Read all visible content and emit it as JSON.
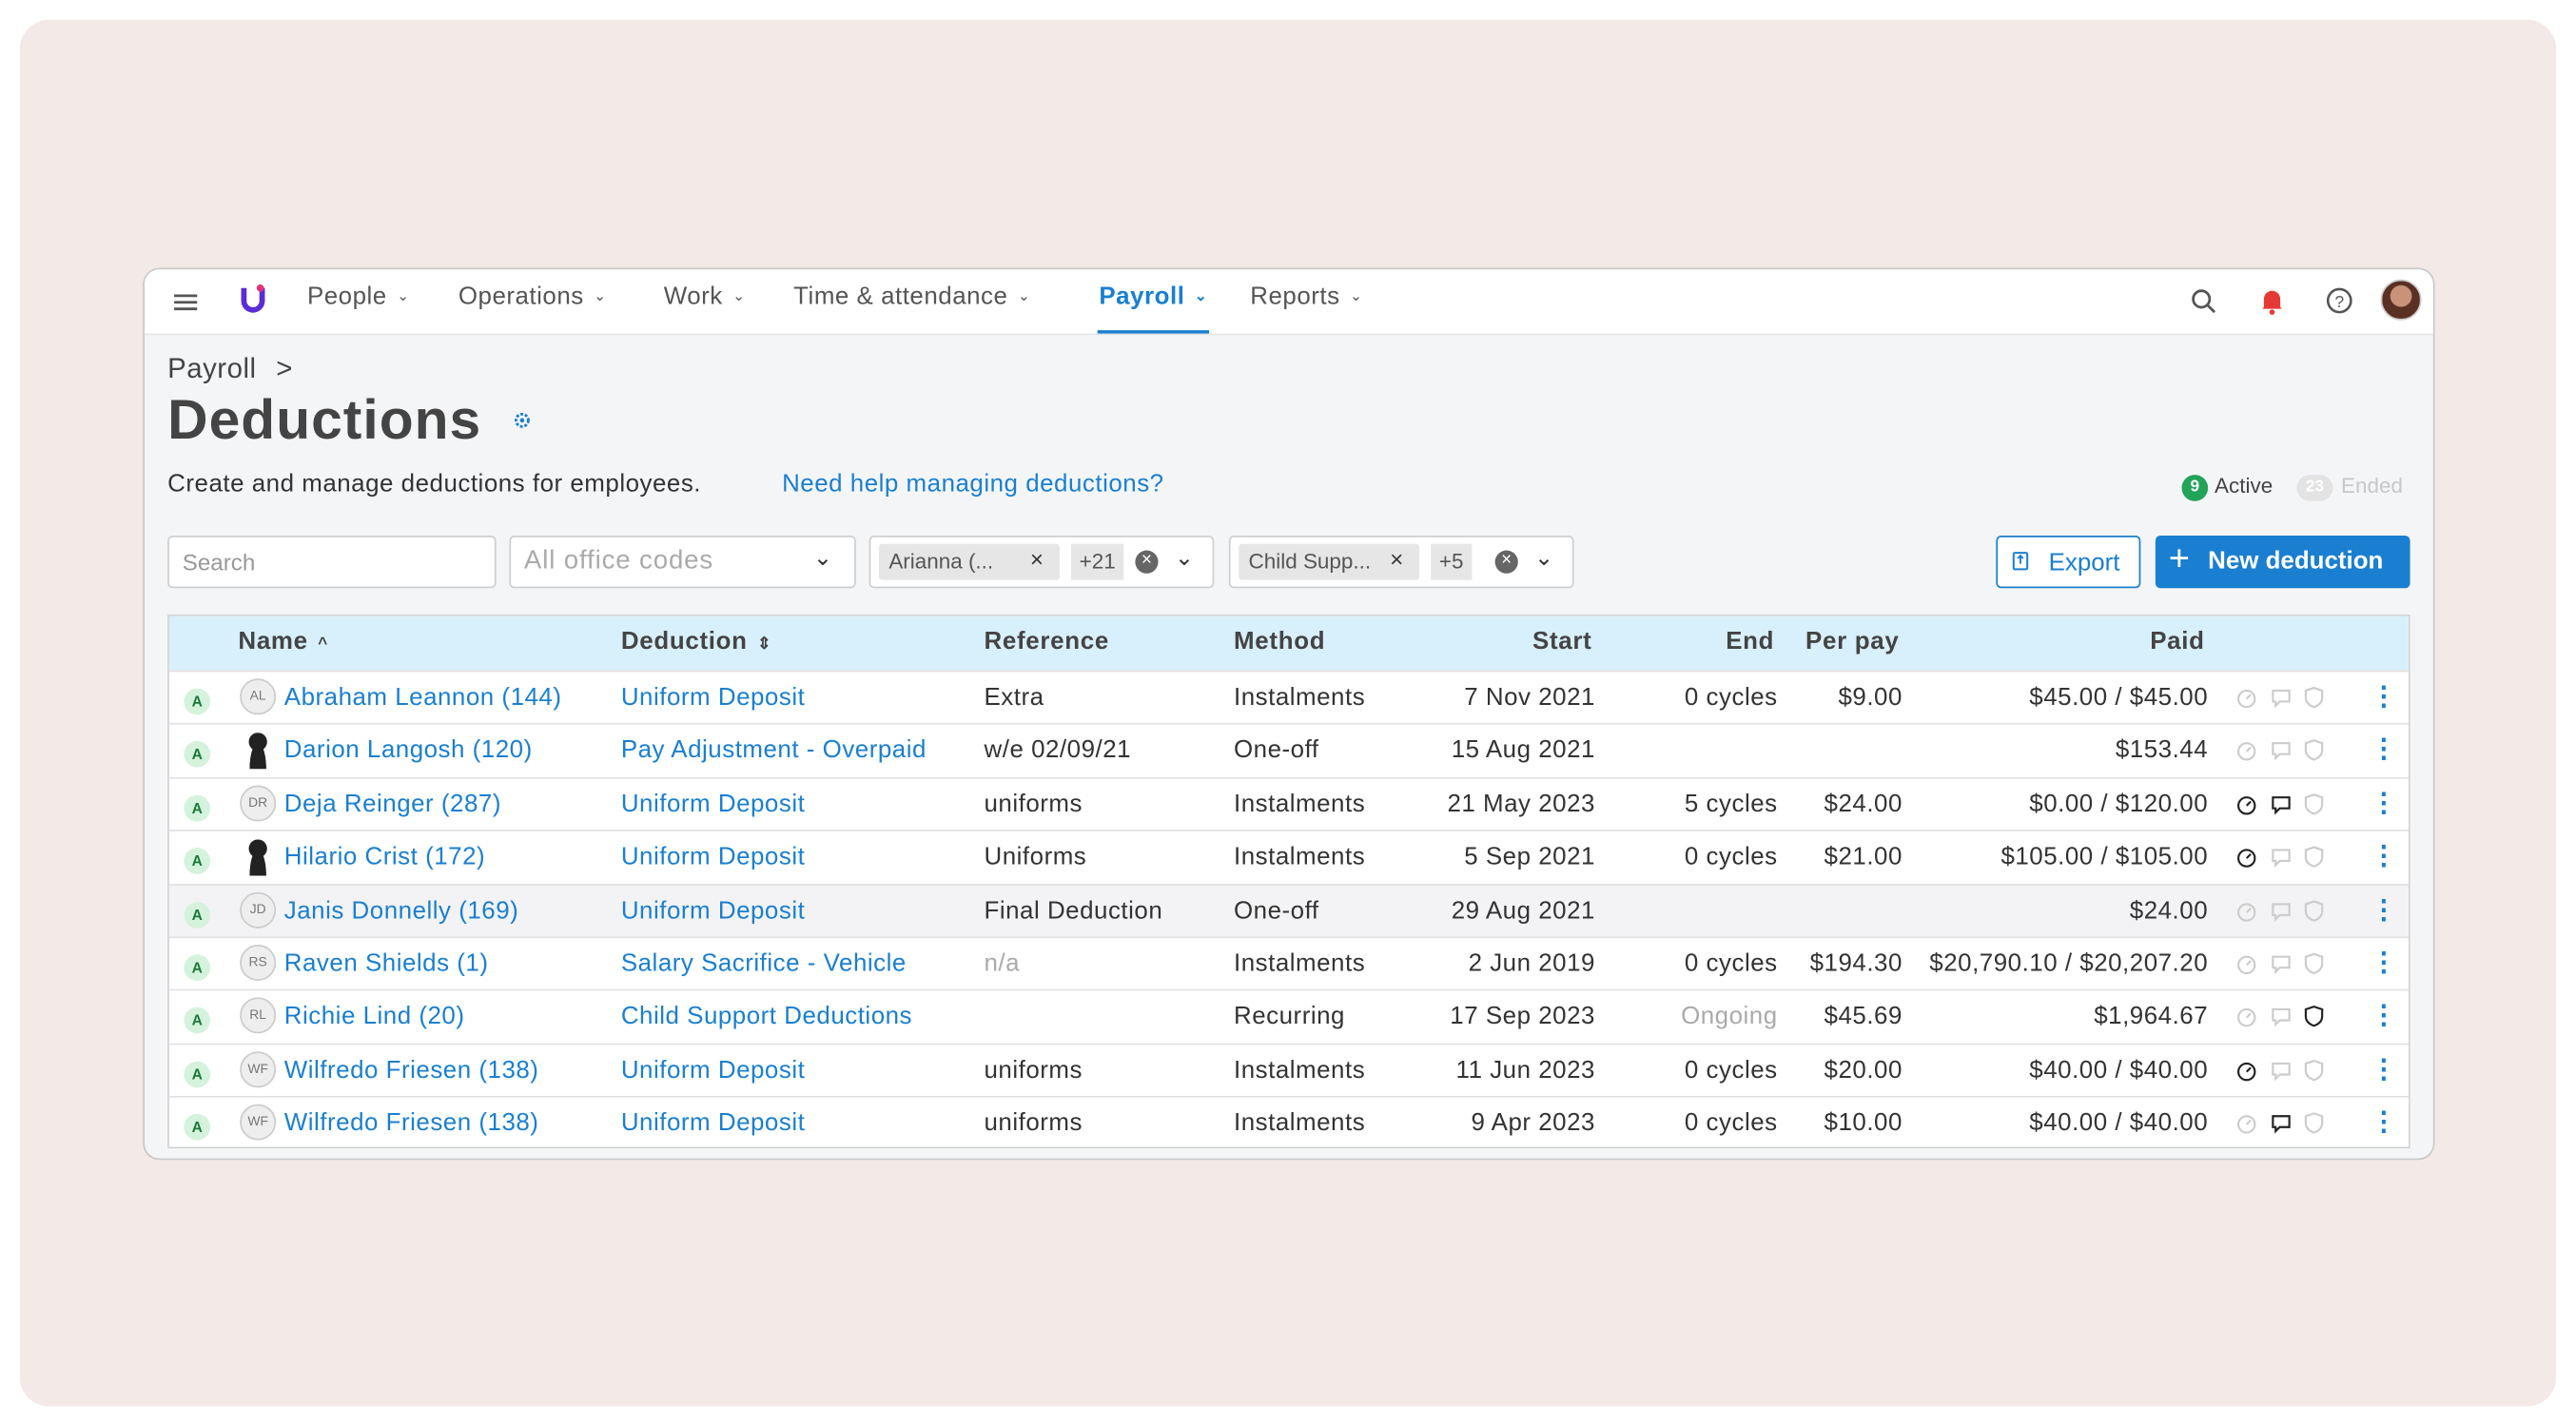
{
  "nav": {
    "items": [
      "People",
      "Operations",
      "Work",
      "Time & attendance",
      "Payroll",
      "Reports"
    ],
    "active": "Payroll"
  },
  "breadcrumb": "Payroll",
  "title": "Deductions",
  "description": "Create and manage deductions for employees.",
  "help_link": "Need help managing deductions?",
  "status": {
    "active_count": "9",
    "active_label": "Active",
    "ended_count": "23",
    "ended_label": "Ended"
  },
  "filters": {
    "search": "Search",
    "office_codes": "All office codes",
    "people_chip": "Arianna (...",
    "people_more": "+21",
    "deduction_chip": "Child Supp...",
    "deduction_more": "+5"
  },
  "buttons": {
    "export": "Export",
    "new": "New deduction"
  },
  "table": {
    "headers": [
      "Name",
      "Deduction",
      "Reference",
      "Method",
      "Start",
      "End",
      "Per pay",
      "Paid"
    ],
    "rows": [
      {
        "status": "A",
        "initials": "AL",
        "name": "Abraham Leannon (144)",
        "deduction": "Uniform Deposit",
        "reference": "Extra",
        "method": "Instalments",
        "start": "7 Nov 2021",
        "end": "0 cycles",
        "per_pay": "$9.00",
        "paid": "$45.00 / $45.00"
      },
      {
        "status": "A",
        "name": "Darion Langosh (120)",
        "deduction": "Pay Adjustment - Overpaid",
        "reference": "w/e 02/09/21",
        "method": "One-off",
        "start": "15 Aug 2021",
        "paid": "$153.44"
      },
      {
        "status": "A",
        "initials": "DR",
        "name": "Deja Reinger (287)",
        "deduction": "Uniform Deposit",
        "reference": "uniforms",
        "method": "Instalments",
        "start": "21 May 2023",
        "end": "5 cycles",
        "per_pay": "$24.00",
        "paid": "$0.00 / $120.00"
      },
      {
        "status": "A",
        "name": "Hilario Crist (172)",
        "deduction": "Uniform Deposit",
        "reference": "Uniforms",
        "method": "Instalments",
        "start": "5 Sep 2021",
        "end": "0 cycles",
        "per_pay": "$21.00",
        "paid": "$105.00 / $105.00"
      },
      {
        "status": "A",
        "initials": "JD",
        "name": "Janis Donnelly (169)",
        "deduction": "Uniform Deposit",
        "reference": "Final Deduction",
        "method": "One-off",
        "start": "29 Aug 2021",
        "paid": "$24.00"
      },
      {
        "status": "A",
        "initials": "RS",
        "name": "Raven Shields (1)",
        "deduction": "Salary Sacrifice - Vehicle",
        "reference": "n/a",
        "method": "Instalments",
        "start": "2 Jun 2019",
        "end": "0 cycles",
        "per_pay": "$194.30",
        "paid": "$20,790.10 / $20,207.20"
      },
      {
        "status": "A",
        "initials": "RL",
        "name": "Richie Lind (20)",
        "deduction": "Child Support Deductions",
        "method": "Recurring",
        "start": "17 Sep 2023",
        "end": "Ongoing",
        "per_pay": "$45.69",
        "paid": "$1,964.67"
      },
      {
        "status": "A",
        "initials": "WF",
        "name": "Wilfredo Friesen (138)",
        "deduction": "Uniform Deposit",
        "reference": "uniforms",
        "method": "Instalments",
        "start": "11 Jun 2023",
        "end": "0 cycles",
        "per_pay": "$20.00",
        "paid": "$40.00 / $40.00"
      },
      {
        "status": "A",
        "initials": "WF",
        "name": "Wilfredo Friesen (138)",
        "deduction": "Uniform Deposit",
        "reference": "uniforms",
        "method": "Instalments",
        "start": "9 Apr 2023",
        "end": "0 cycles",
        "per_pay": "$10.00",
        "paid": "$40.00 / $40.00"
      }
    ]
  }
}
